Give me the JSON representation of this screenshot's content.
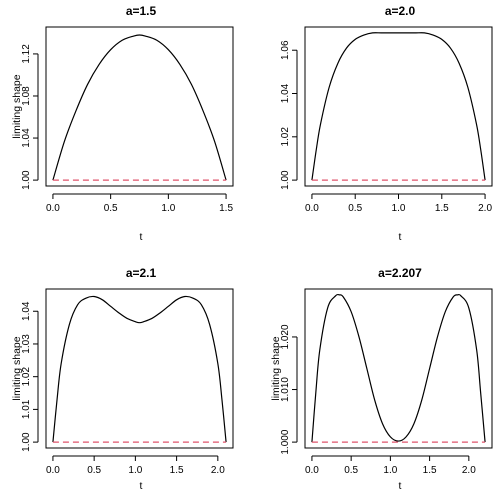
{
  "colors": {
    "curve": "#000000",
    "reference": "#df536b"
  },
  "chart_data": [
    {
      "type": "line",
      "title": "a=1.5",
      "xlabel": "t",
      "ylabel": "limiting shape",
      "xlim": [
        0,
        1.5
      ],
      "ylim": [
        1.0,
        1.14
      ],
      "xticks": [
        "0.0",
        "0.5",
        "1.0",
        "1.5"
      ],
      "yticks": [
        "1.00",
        "1.04",
        "1.08",
        "1.12"
      ],
      "series": [
        {
          "x": [
            0,
            0.1,
            0.2,
            0.3,
            0.4,
            0.5,
            0.6,
            0.7,
            0.75,
            0.8,
            0.9,
            1.0,
            1.1,
            1.2,
            1.3,
            1.4,
            1.5
          ],
          "values": [
            1.0,
            1.037,
            1.066,
            1.091,
            1.11,
            1.124,
            1.133,
            1.137,
            1.138,
            1.137,
            1.133,
            1.124,
            1.11,
            1.091,
            1.066,
            1.037,
            1.0
          ]
        },
        {
          "style": "dashed",
          "x": [
            0,
            1.5
          ],
          "values": [
            1.0,
            1.0
          ]
        }
      ]
    },
    {
      "type": "line",
      "title": "a=2.0",
      "xlabel": "t",
      "ylabel": "",
      "xlim": [
        0,
        2.0
      ],
      "ylim": [
        1.0,
        1.068
      ],
      "xticks": [
        "0.0",
        "0.5",
        "1.0",
        "1.5",
        "2.0"
      ],
      "yticks": [
        "1.00",
        "1.02",
        "1.04",
        "1.06"
      ],
      "series": [
        {
          "x": [
            0,
            0.05,
            0.1,
            0.2,
            0.3,
            0.4,
            0.5,
            0.6,
            0.7,
            0.8,
            0.9,
            1.0,
            1.1,
            1.2,
            1.3,
            1.4,
            1.5,
            1.6,
            1.7,
            1.8,
            1.9,
            1.95,
            2.0
          ],
          "values": [
            1.0,
            1.014,
            1.026,
            1.043,
            1.054,
            1.061,
            1.065,
            1.067,
            1.068,
            1.068,
            1.068,
            1.068,
            1.068,
            1.068,
            1.068,
            1.067,
            1.065,
            1.061,
            1.054,
            1.043,
            1.026,
            1.014,
            1.0
          ]
        },
        {
          "style": "dashed",
          "x": [
            0,
            2.0
          ],
          "values": [
            1.0,
            1.0
          ]
        }
      ]
    },
    {
      "type": "line",
      "title": "a=2.1",
      "xlabel": "t",
      "ylabel": "limiting shape",
      "xlim": [
        0,
        2.1
      ],
      "ylim": [
        1.0,
        1.045
      ],
      "xticks": [
        "0.0",
        "0.5",
        "1.0",
        "1.5",
        "2.0"
      ],
      "yticks": [
        "1.00",
        "1.01",
        "1.02",
        "1.03",
        "1.04"
      ],
      "series": [
        {
          "x": [
            0,
            0.05,
            0.1,
            0.2,
            0.3,
            0.4,
            0.5,
            0.6,
            0.7,
            0.8,
            0.9,
            1.0,
            1.05,
            1.1,
            1.2,
            1.3,
            1.4,
            1.5,
            1.6,
            1.7,
            1.8,
            1.9,
            2.0,
            2.05,
            2.1
          ],
          "values": [
            1.0,
            1.013,
            1.024,
            1.036,
            1.042,
            1.044,
            1.0445,
            1.0435,
            1.0415,
            1.0395,
            1.0378,
            1.0368,
            1.0365,
            1.0368,
            1.0378,
            1.0395,
            1.0415,
            1.0435,
            1.0445,
            1.044,
            1.042,
            1.036,
            1.024,
            1.013,
            1.0
          ]
        },
        {
          "style": "dashed",
          "x": [
            0,
            2.1
          ],
          "values": [
            1.0,
            1.0
          ]
        }
      ]
    },
    {
      "type": "line",
      "title": "a=2.207",
      "xlabel": "t",
      "ylabel": "limiting shape",
      "xlim": [
        0,
        2.207
      ],
      "ylim": [
        1.0,
        1.028
      ],
      "xticks": [
        "0.0",
        "0.5",
        "1.0",
        "1.5",
        "2.0"
      ],
      "yticks": [
        "1.000",
        "1.010",
        "1.020"
      ],
      "series": [
        {
          "x": [
            0,
            0.05,
            0.1,
            0.2,
            0.3,
            0.35,
            0.4,
            0.5,
            0.6,
            0.7,
            0.8,
            0.9,
            1.0,
            1.1035,
            1.2,
            1.3,
            1.4,
            1.5,
            1.6,
            1.7,
            1.8,
            1.857,
            1.9,
            2.0,
            2.1,
            2.15,
            2.207
          ],
          "values": [
            1.0,
            1.0095,
            1.0175,
            1.0255,
            1.0278,
            1.028,
            1.0276,
            1.0248,
            1.02,
            1.014,
            1.008,
            1.0035,
            1.001,
            1.0002,
            1.001,
            1.0035,
            1.008,
            1.014,
            1.02,
            1.0248,
            1.0276,
            1.028,
            1.0278,
            1.0255,
            1.0175,
            1.0095,
            1.0
          ]
        },
        {
          "style": "dashed",
          "x": [
            0,
            2.207
          ],
          "values": [
            1.0,
            1.0
          ]
        }
      ]
    }
  ]
}
